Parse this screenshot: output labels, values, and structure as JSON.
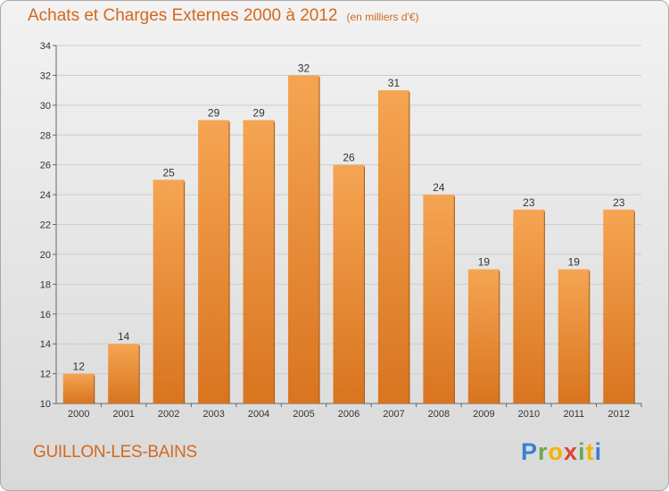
{
  "header": {
    "title": "Achats et Charges Externes 2000 à 2012",
    "unit": "(en milliers d'€)"
  },
  "footer": {
    "city": "GUILLON-LES-BAINS",
    "logo_letters": [
      "P",
      "r",
      "o",
      "x",
      "i",
      "t",
      "i"
    ],
    "logo_colors": [
      "#3a7fd5",
      "#6aa84f",
      "#f4b400",
      "#e0442f",
      "#6aa84f",
      "#f4b400",
      "#3a7fd5"
    ]
  },
  "chart_data": {
    "type": "bar",
    "title": "Achats et Charges Externes 2000 à 2012",
    "categories": [
      "2000",
      "2001",
      "2002",
      "2003",
      "2004",
      "2005",
      "2006",
      "2007",
      "2008",
      "2009",
      "2010",
      "2011",
      "2012"
    ],
    "values": [
      12,
      14,
      25,
      29,
      29,
      32,
      26,
      31,
      24,
      19,
      23,
      19,
      23
    ],
    "ylim": [
      10,
      34
    ],
    "yticks": [
      10,
      12,
      14,
      16,
      18,
      20,
      22,
      24,
      26,
      28,
      30,
      32,
      34
    ],
    "grid": true,
    "bar_color_top": "#f5a552",
    "bar_color_bottom": "#d9741f"
  }
}
